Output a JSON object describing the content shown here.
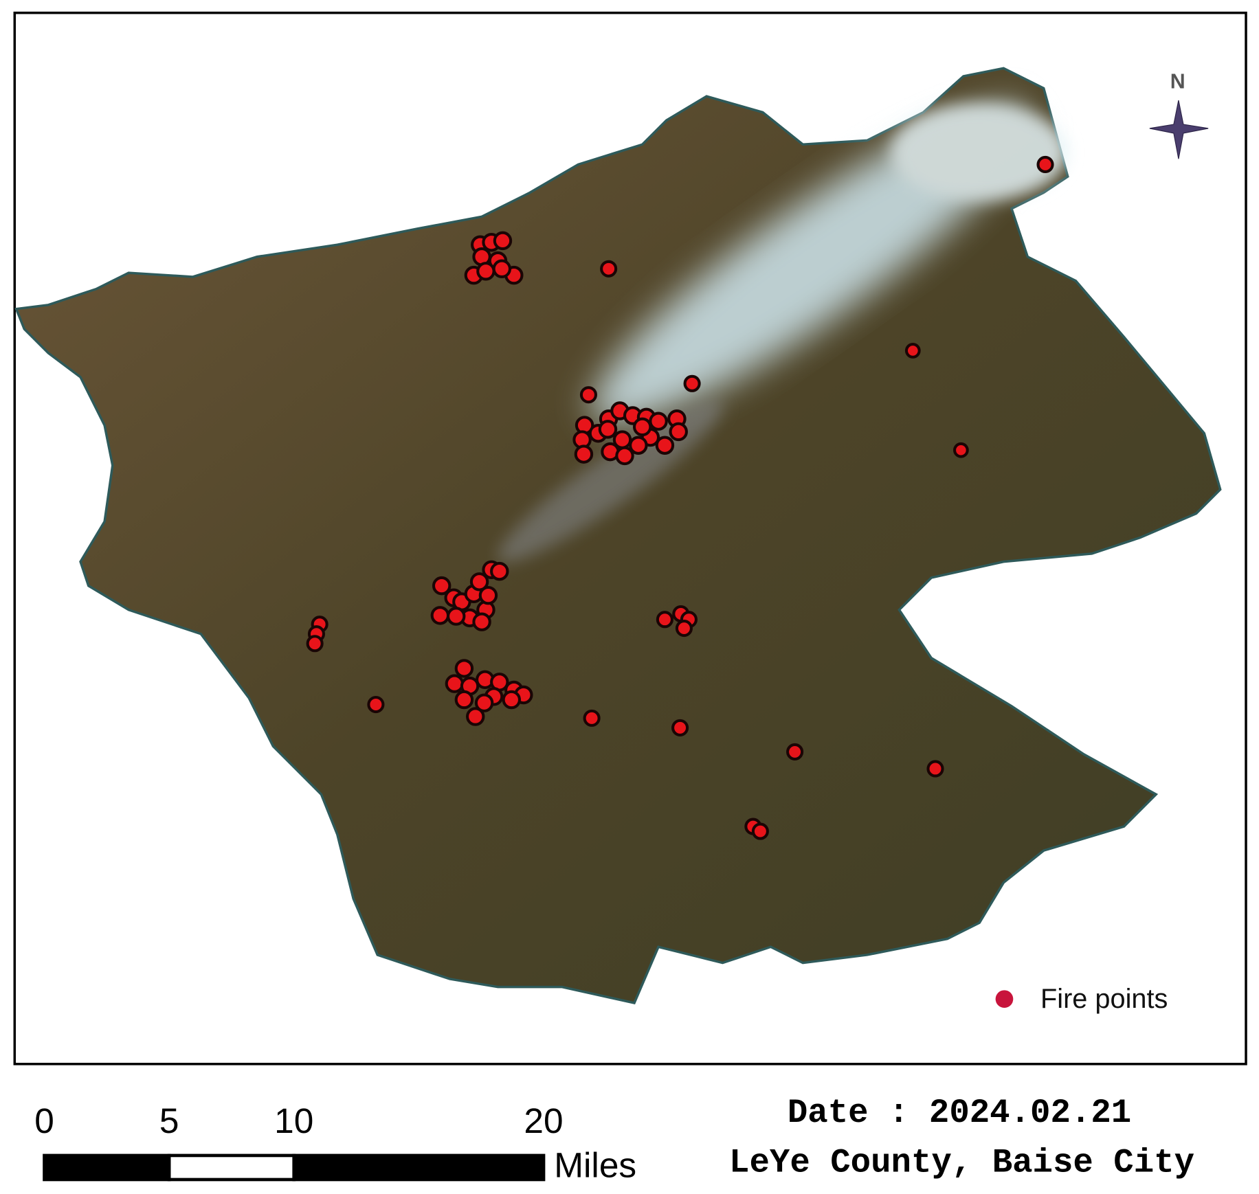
{
  "north_arrow": {
    "label": "N"
  },
  "legend": {
    "label": "Fire points"
  },
  "scale_bar": {
    "ticks": [
      0,
      5,
      10,
      20
    ],
    "unit": "Miles"
  },
  "caption": {
    "date": "Date : 2024.02.21",
    "location": "LeYe County, Baise City"
  }
}
